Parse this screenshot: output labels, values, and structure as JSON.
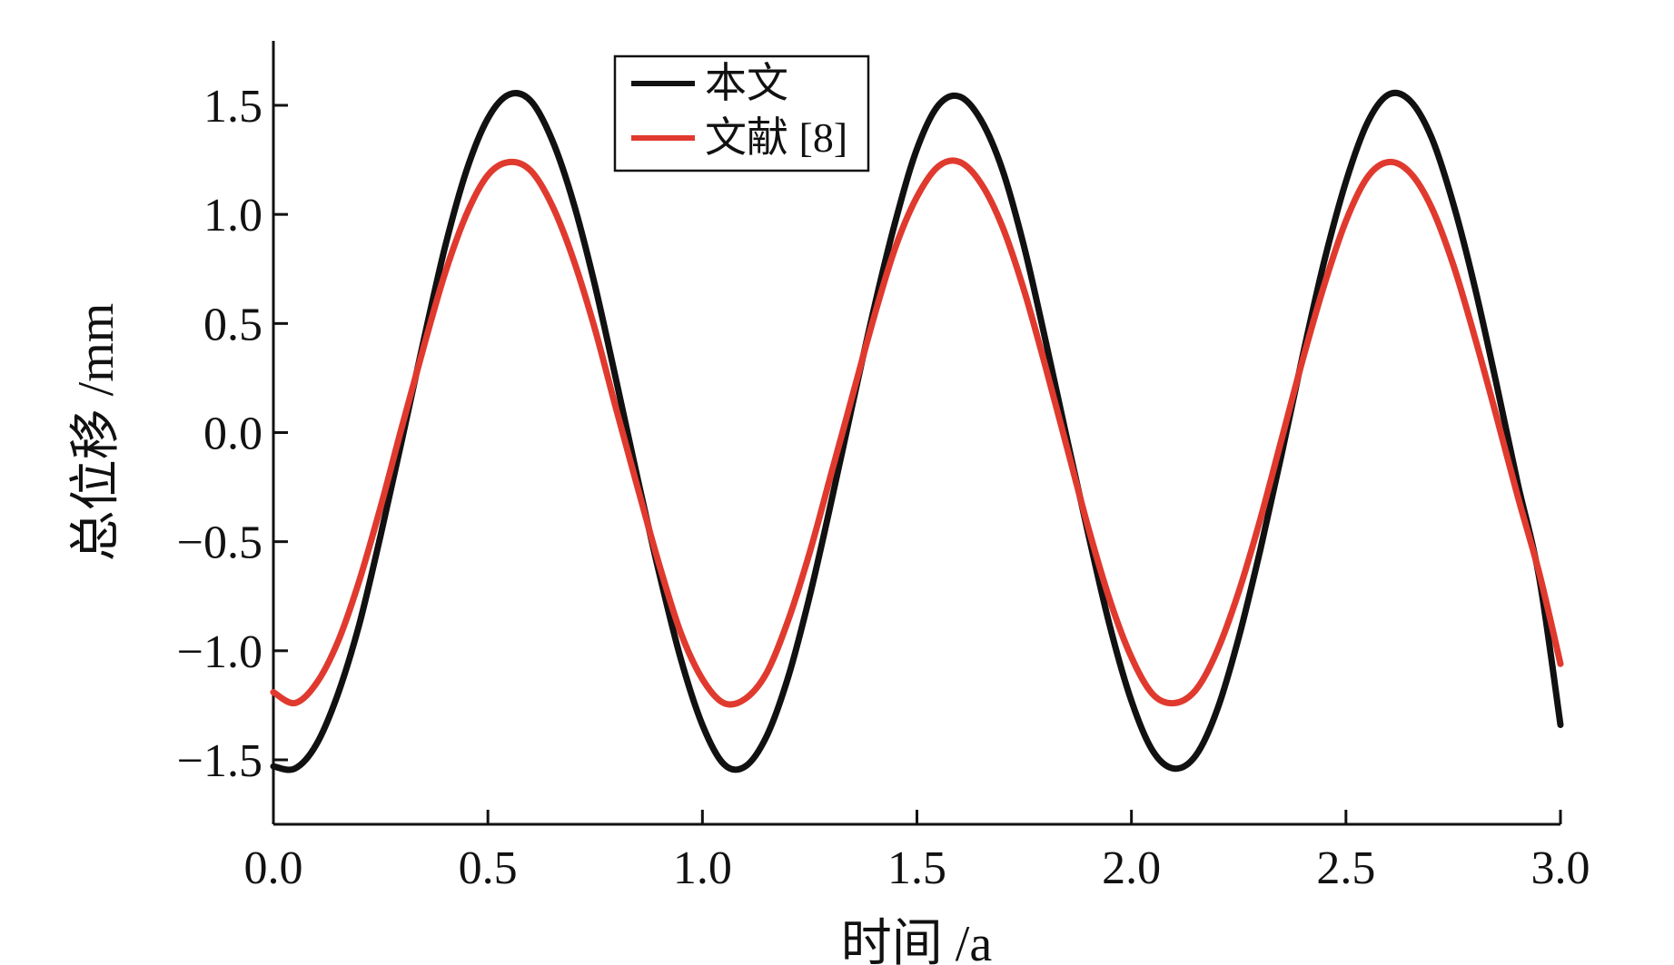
{
  "chart_data": {
    "type": "line",
    "xlabel": "时间 /a",
    "ylabel": "总位移 /mm",
    "xlim": [
      0.0,
      3.0
    ],
    "ylim": [
      -1.8,
      1.8
    ],
    "xticks": [
      "0.0",
      "0.5",
      "1.0",
      "1.5",
      "2.0",
      "2.5",
      "3.0"
    ],
    "yticks": [
      "1.5",
      "1.0",
      "0.5",
      "0.0",
      "−0.5",
      "−1.0",
      "−1.5"
    ],
    "ytick_values": [
      1.5,
      1.0,
      0.5,
      0.0,
      -0.5,
      -1.0,
      -1.5
    ],
    "xtick_values": [
      0.0,
      0.5,
      1.0,
      1.5,
      2.0,
      2.5,
      3.0
    ],
    "grid": false,
    "legend_position": "top-center",
    "series": [
      {
        "name": "本文",
        "color": "#111111",
        "x": [
          0.0,
          0.05,
          0.1,
          0.15,
          0.2,
          0.25,
          0.3,
          0.35,
          0.4,
          0.45,
          0.5,
          0.55,
          0.6,
          0.65,
          0.7,
          0.75,
          0.8,
          0.85,
          0.9,
          0.95,
          1.0,
          1.05,
          1.1,
          1.15,
          1.2,
          1.25,
          1.3,
          1.35,
          1.4,
          1.45,
          1.5,
          1.55,
          1.6,
          1.65,
          1.7,
          1.75,
          1.8,
          1.85,
          1.9,
          1.95,
          2.0,
          2.05,
          2.1,
          2.15,
          2.2,
          2.25,
          2.3,
          2.35,
          2.4,
          2.45,
          2.5,
          2.55,
          2.6,
          2.65,
          2.7,
          2.75,
          2.8,
          2.85,
          2.9,
          2.95,
          3.0
        ],
        "y": [
          -1.53,
          -1.54,
          -1.43,
          -1.2,
          -0.88,
          -0.47,
          -0.03,
          0.42,
          0.85,
          1.2,
          1.44,
          1.55,
          1.52,
          1.34,
          1.05,
          0.67,
          0.23,
          -0.22,
          -0.65,
          -1.04,
          -1.34,
          -1.52,
          -1.53,
          -1.39,
          -1.12,
          -0.75,
          -0.32,
          0.13,
          0.57,
          0.97,
          1.3,
          1.5,
          1.54,
          1.43,
          1.2,
          0.85,
          0.42,
          -0.03,
          -0.47,
          -0.89,
          -1.23,
          -1.46,
          -1.54,
          -1.48,
          -1.27,
          -0.94,
          -0.54,
          -0.1,
          0.36,
          0.79,
          1.15,
          1.42,
          1.55,
          1.52,
          1.35,
          1.05,
          0.67,
          0.23,
          -0.23,
          -0.66,
          -1.34
        ]
      },
      {
        "name": "文献 [8]",
        "color": "#e03a2f",
        "x": [
          0.0,
          0.05,
          0.1,
          0.15,
          0.2,
          0.25,
          0.3,
          0.35,
          0.4,
          0.45,
          0.5,
          0.55,
          0.6,
          0.65,
          0.7,
          0.75,
          0.8,
          0.85,
          0.9,
          0.95,
          1.0,
          1.05,
          1.1,
          1.15,
          1.2,
          1.25,
          1.3,
          1.35,
          1.4,
          1.45,
          1.5,
          1.55,
          1.6,
          1.65,
          1.7,
          1.75,
          1.8,
          1.85,
          1.9,
          1.95,
          2.0,
          2.05,
          2.1,
          2.15,
          2.2,
          2.25,
          2.3,
          2.35,
          2.4,
          2.45,
          2.5,
          2.55,
          2.6,
          2.65,
          2.7,
          2.75,
          2.8,
          2.85,
          2.9,
          2.95,
          3.0
        ],
        "y": [
          -1.19,
          -1.24,
          -1.15,
          -0.96,
          -0.68,
          -0.34,
          0.03,
          0.39,
          0.73,
          1.0,
          1.18,
          1.24,
          1.2,
          1.04,
          0.79,
          0.47,
          0.1,
          -0.26,
          -0.61,
          -0.92,
          -1.13,
          -1.24,
          -1.22,
          -1.1,
          -0.86,
          -0.55,
          -0.19,
          0.17,
          0.53,
          0.85,
          1.08,
          1.22,
          1.24,
          1.14,
          0.94,
          0.65,
          0.3,
          -0.07,
          -0.44,
          -0.77,
          -1.03,
          -1.2,
          -1.24,
          -1.18,
          -1.0,
          -0.73,
          -0.4,
          -0.03,
          0.34,
          0.68,
          0.97,
          1.17,
          1.24,
          1.19,
          1.03,
          0.77,
          0.44,
          0.08,
          -0.29,
          -0.64,
          -1.06
        ]
      }
    ]
  }
}
